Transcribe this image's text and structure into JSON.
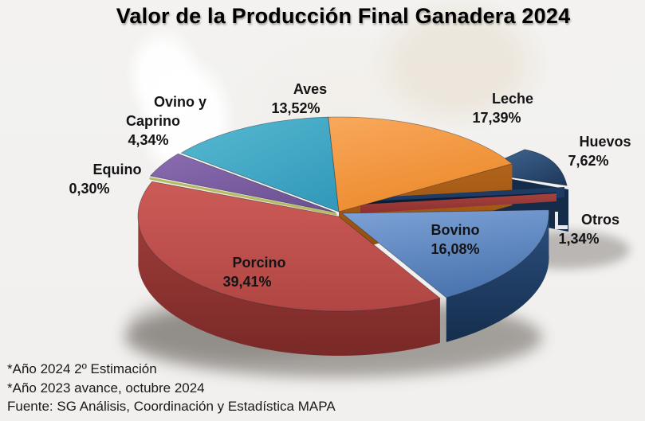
{
  "title": "Valor de la Producción Final Ganadera 2024",
  "chart_data": {
    "type": "pie",
    "style": "3d-exploded-pie",
    "title": "Valor de la Producción Final Ganadera 2024",
    "unit": "percent",
    "start": "12-oclock-clockwise",
    "slices": [
      {
        "id": "leche",
        "label": "Leche",
        "value": 17.39,
        "display": "17,39%",
        "color": "#F79646"
      },
      {
        "id": "huevos",
        "label": "Huevos",
        "value": 7.62,
        "display": "7,62%",
        "color": "#1F497D"
      },
      {
        "id": "otros",
        "label": "Otros",
        "value": 1.34,
        "display": "1,34%",
        "color": "#943634"
      },
      {
        "id": "bovino",
        "label": "Bovino",
        "value": 16.08,
        "display": "16,08%",
        "color": "#4F81BD"
      },
      {
        "id": "porcino",
        "label": "Porcino",
        "value": 39.41,
        "display": "39,41%",
        "color": "#C0504D"
      },
      {
        "id": "equino",
        "label": "Equino",
        "value": 0.3,
        "display": "0,30%",
        "color": "#9BBB59"
      },
      {
        "id": "ovino",
        "label": "Ovino y Caprino",
        "label_lines": [
          "Ovino y",
          "Caprino"
        ],
        "value": 4.34,
        "display": "4,34%",
        "color": "#8064A2"
      },
      {
        "id": "aves",
        "label": "Aves",
        "value": 13.52,
        "display": "13,52%",
        "color": "#4BACC6"
      }
    ]
  },
  "footnotes": [
    "*Año 2024 2º Estimación",
    "*Año 2023 avance, octubre 2024",
    "Fuente: SG Análisis, Coordinación y Estadística MAPA"
  ]
}
